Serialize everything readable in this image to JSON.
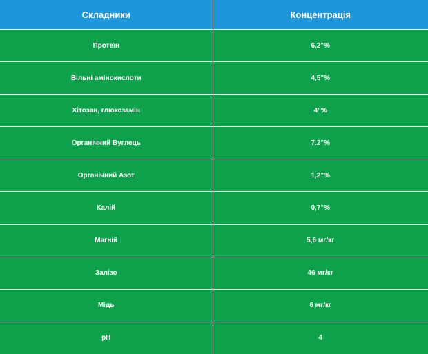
{
  "table": {
    "headers": [
      "Складники",
      "Концентрація"
    ],
    "rows": [
      [
        "Протеїн",
        "6,2\"%"
      ],
      [
        "Вільні амінокислоти",
        "4,5\"%"
      ],
      [
        "Хітозан, глюкозамін",
        "4\"%"
      ],
      [
        "Органічний Вуглець",
        "7.2\"%"
      ],
      [
        "Органічний Азот",
        "1,2\"%"
      ],
      [
        "Калій",
        "0,7\"%"
      ],
      [
        "Магній",
        "5,6 мг/кг"
      ],
      [
        "Залізо",
        "46 мг/кг"
      ],
      [
        "Мідь",
        "6 мг/кг"
      ],
      [
        "pH",
        "4"
      ]
    ]
  },
  "colors": {
    "header_bg": "#1e96dc",
    "row_bg": "#0ea14b",
    "text": "#ffffff"
  }
}
